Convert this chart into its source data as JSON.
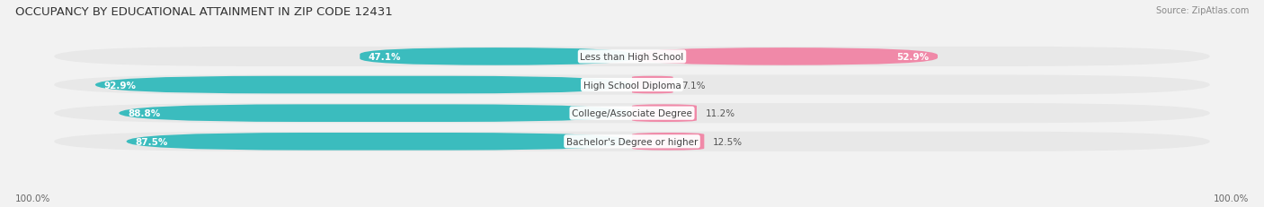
{
  "title": "OCCUPANCY BY EDUCATIONAL ATTAINMENT IN ZIP CODE 12431",
  "source": "Source: ZipAtlas.com",
  "categories": [
    "Less than High School",
    "High School Diploma",
    "College/Associate Degree",
    "Bachelor's Degree or higher"
  ],
  "owner_pct": [
    47.1,
    92.9,
    88.8,
    87.5
  ],
  "renter_pct": [
    52.9,
    7.1,
    11.2,
    12.5
  ],
  "owner_color": "#3bbcbe",
  "renter_color": "#f089a8",
  "bar_height": 0.62,
  "row_bg_color": "#e8e8e8",
  "background_color": "#f2f2f2",
  "label_color": "#555555",
  "title_color": "#333333",
  "axis_label_left": "100.0%",
  "axis_label_right": "100.0%"
}
